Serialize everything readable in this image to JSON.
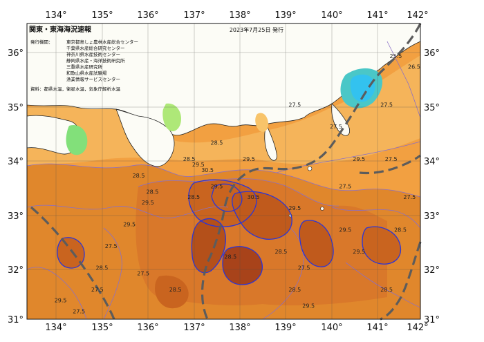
{
  "map": {
    "title": "関東・東海海況速報",
    "date": "2023年7月25日 発行",
    "agencies_label": "発行機関：",
    "agencies": [
      "東京都島しょ農林水産総合センター",
      "千葉県水産総合研究センター",
      "神奈川県水産技術センター",
      "静岡県水産・海洋技術研究所",
      "三重県水産研究所",
      "和歌山県水産試験場",
      "漁業情報サービスセンター"
    ],
    "source": "資料：都県水温，衛星水温，気象庁解析水温",
    "lon_ticks": [
      "134°",
      "135°",
      "136°",
      "137°",
      "138°",
      "139°",
      "140°",
      "141°",
      "142°"
    ],
    "lat_ticks": [
      "36°",
      "35°",
      "34°",
      "33°",
      "32°",
      "31°"
    ],
    "lat_ticks_right": [
      "36°",
      "35°",
      "34°",
      "33°",
      "32°",
      "31°"
    ],
    "contour_labels": [
      {
        "text": "28.5",
        "lon": 137.5,
        "lat": 34.3
      },
      {
        "text": "28.5",
        "lon": 136.9,
        "lat": 34.0
      },
      {
        "text": "29.5",
        "lon": 137.1,
        "lat": 33.9
      },
      {
        "text": "29.5",
        "lon": 138.2,
        "lat": 34.0
      },
      {
        "text": "28.5",
        "lon": 136.1,
        "lat": 33.4
      },
      {
        "text": "28.5",
        "lon": 135.8,
        "lat": 33.7
      },
      {
        "text": "29.5",
        "lon": 136.0,
        "lat": 33.2
      },
      {
        "text": "28.5",
        "lon": 137.0,
        "lat": 33.3
      },
      {
        "text": "29.5",
        "lon": 137.5,
        "lat": 33.5
      },
      {
        "text": "30.5",
        "lon": 137.3,
        "lat": 33.8
      },
      {
        "text": "30.5",
        "lon": 138.3,
        "lat": 33.3
      },
      {
        "text": "29.5",
        "lon": 139.2,
        "lat": 33.1
      },
      {
        "text": "29.5",
        "lon": 135.6,
        "lat": 32.8
      },
      {
        "text": "27.5",
        "lon": 135.2,
        "lat": 32.4
      },
      {
        "text": "28.5",
        "lon": 135.0,
        "lat": 32.0
      },
      {
        "text": "29.5",
        "lon": 134.1,
        "lat": 31.4
      },
      {
        "text": "27.5",
        "lon": 135.9,
        "lat": 31.9
      },
      {
        "text": "28.5",
        "lon": 136.6,
        "lat": 31.6
      },
      {
        "text": "28.5",
        "lon": 137.8,
        "lat": 32.2
      },
      {
        "text": "28.5",
        "lon": 138.9,
        "lat": 32.3
      },
      {
        "text": "27.5",
        "lon": 139.4,
        "lat": 32.0
      },
      {
        "text": "28.5",
        "lon": 139.2,
        "lat": 31.6
      },
      {
        "text": "29.5",
        "lon": 139.5,
        "lat": 31.3
      },
      {
        "text": "29.5",
        "lon": 140.3,
        "lat": 32.7
      },
      {
        "text": "29.5",
        "lon": 140.6,
        "lat": 32.3
      },
      {
        "text": "28.5",
        "lon": 141.2,
        "lat": 31.6
      },
      {
        "text": "27.5",
        "lon": 140.3,
        "lat": 33.5
      },
      {
        "text": "29.5",
        "lon": 140.6,
        "lat": 34.0
      },
      {
        "text": "27.5",
        "lon": 141.3,
        "lat": 34.0
      },
      {
        "text": "27.5",
        "lon": 141.7,
        "lat": 33.3
      },
      {
        "text": "28.5",
        "lon": 141.5,
        "lat": 32.7
      },
      {
        "text": "27.5",
        "lon": 141.2,
        "lat": 35.0
      },
      {
        "text": "26.5",
        "lon": 141.8,
        "lat": 35.7
      },
      {
        "text": "25.5",
        "lon": 141.4,
        "lat": 35.9
      },
      {
        "text": "27.5",
        "lon": 140.1,
        "lat": 34.6
      },
      {
        "text": "27.5",
        "lon": 139.2,
        "lat": 35.0
      },
      {
        "text": "27.5",
        "lon": 134.5,
        "lat": 31.2
      },
      {
        "text": "27.5",
        "lon": 134.9,
        "lat": 31.6
      }
    ]
  }
}
